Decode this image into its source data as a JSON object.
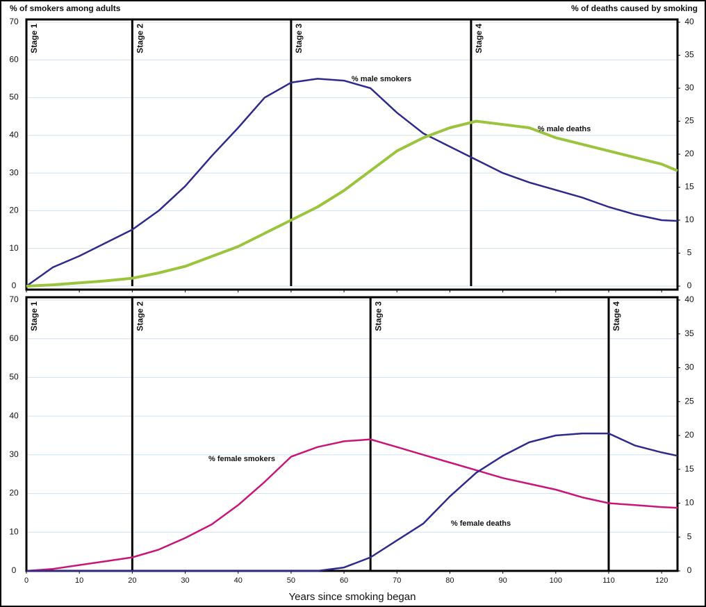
{
  "chart_data": [
    {
      "type": "line",
      "ylabel": "% of smokers among adults",
      "y2label": "% of deaths caused by smoking",
      "x": [
        0,
        5,
        10,
        15,
        20,
        25,
        30,
        35,
        40,
        45,
        50,
        55,
        60,
        65,
        70,
        75,
        80,
        85,
        90,
        95,
        100,
        105,
        110,
        115,
        120,
        123
      ],
      "xlim": [
        0,
        123
      ],
      "xticks": [
        0,
        10,
        20,
        30,
        40,
        50,
        60,
        70,
        80,
        90,
        100,
        110,
        120
      ],
      "ylim": [
        0,
        70
      ],
      "yticks": [
        0,
        10,
        20,
        30,
        40,
        50,
        60,
        70
      ],
      "y2lim": [
        0,
        40
      ],
      "y2ticks": [
        0,
        5,
        10,
        15,
        20,
        25,
        30,
        35,
        40
      ],
      "grid": true,
      "series": [
        {
          "name": "% male smokers",
          "color": "#2e2a8c",
          "values": [
            0,
            5,
            8,
            11.5,
            15,
            20,
            26.5,
            34.5,
            42,
            50,
            54,
            55,
            54.5,
            52.5,
            46,
            40.5,
            37,
            33.5,
            30,
            27.5,
            25.5,
            23.5,
            21,
            19,
            17.5,
            17.3
          ]
        },
        {
          "name": "% male deaths",
          "color": "#9ac43c",
          "axis": "y2",
          "values": [
            0,
            0.2,
            0.5,
            0.8,
            1.2,
            2,
            3,
            4.5,
            6,
            8,
            10,
            12,
            14.5,
            17.5,
            20.5,
            22.5,
            24,
            25,
            24.5,
            24,
            22.5,
            21.5,
            20.5,
            19.5,
            18.5,
            17.5
          ]
        }
      ],
      "stages": [
        {
          "label": "Stage 1",
          "x": 0
        },
        {
          "label": "Stage 2",
          "x": 20
        },
        {
          "label": "Stage 3",
          "x": 50
        },
        {
          "label": "Stage 4",
          "x": 84
        }
      ]
    },
    {
      "type": "line",
      "xlabel": "Years since smoking began",
      "x": [
        0,
        5,
        10,
        15,
        20,
        25,
        30,
        35,
        40,
        45,
        50,
        55,
        60,
        65,
        70,
        75,
        80,
        85,
        90,
        95,
        100,
        105,
        110,
        115,
        120,
        123
      ],
      "xlim": [
        0,
        123
      ],
      "xticks": [
        0,
        10,
        20,
        30,
        40,
        50,
        60,
        70,
        80,
        90,
        100,
        110,
        120
      ],
      "ylim": [
        0,
        70
      ],
      "yticks": [
        0,
        10,
        20,
        30,
        40,
        50,
        60,
        70
      ],
      "y2lim": [
        0,
        40
      ],
      "y2ticks": [
        0,
        5,
        10,
        15,
        20,
        25,
        30,
        35,
        40
      ],
      "grid": true,
      "series": [
        {
          "name": "% female smokers",
          "color": "#c8157a",
          "values": [
            0,
            0.5,
            1.5,
            2.5,
            3.5,
            5.5,
            8.5,
            12,
            17,
            23,
            29.5,
            32,
            33.5,
            34,
            32,
            30,
            28,
            26,
            24,
            22.5,
            21,
            19,
            17.5,
            17,
            16.5,
            16.3
          ]
        },
        {
          "name": "% female deaths",
          "color": "#2e2a8c",
          "axis": "y2",
          "values": [
            0,
            0,
            0,
            0,
            0,
            0,
            0,
            0,
            0,
            0,
            0,
            0,
            0.5,
            2,
            4.5,
            7,
            11,
            14.5,
            17,
            19,
            20,
            20.3,
            20.3,
            18.5,
            17.5,
            17
          ]
        }
      ],
      "stages": [
        {
          "label": "Stage 1",
          "x": 0
        },
        {
          "label": "Stage 2",
          "x": 20
        },
        {
          "label": "Stage 3",
          "x": 65
        },
        {
          "label": "Stage 4",
          "x": 110
        }
      ]
    }
  ]
}
